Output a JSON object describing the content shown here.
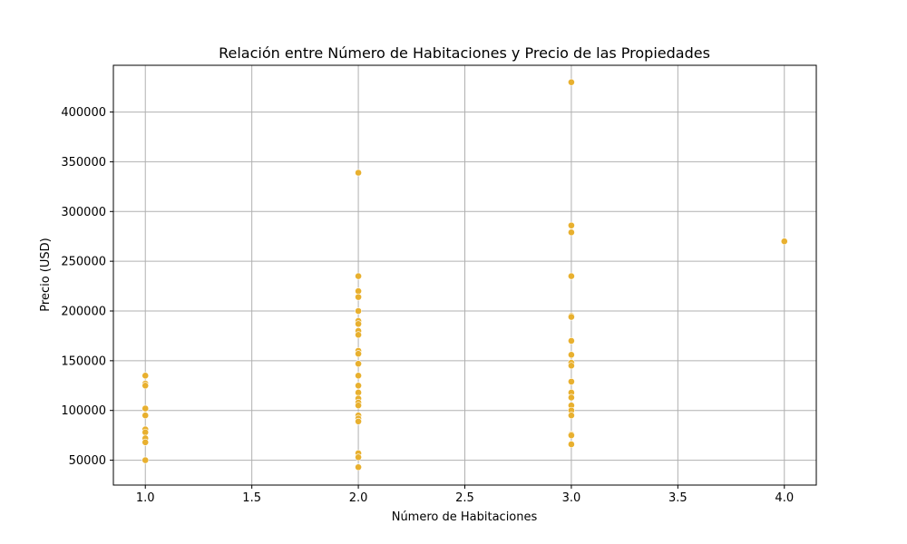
{
  "chart_data": {
    "type": "scatter",
    "title": "Relación entre Número de Habitaciones y Precio de las Propiedades",
    "xlabel": "Número de Habitaciones",
    "ylabel": "Precio (USD)",
    "xlim": [
      0.85,
      4.15
    ],
    "ylim": [
      25000,
      447000
    ],
    "xticks": [
      1.0,
      1.5,
      2.0,
      2.5,
      3.0,
      3.5,
      4.0
    ],
    "xtick_labels": [
      "1.0",
      "1.5",
      "2.0",
      "2.5",
      "3.0",
      "3.5",
      "4.0"
    ],
    "yticks": [
      50000,
      100000,
      150000,
      200000,
      250000,
      300000,
      350000,
      400000
    ],
    "ytick_labels": [
      "50000",
      "100000",
      "150000",
      "200000",
      "250000",
      "300000",
      "350000",
      "400000"
    ],
    "grid": true,
    "marker_color": "#e8b02f",
    "points": [
      {
        "x": 1,
        "y": 135000
      },
      {
        "x": 1,
        "y": 127000
      },
      {
        "x": 1,
        "y": 125000
      },
      {
        "x": 1,
        "y": 102000
      },
      {
        "x": 1,
        "y": 95000
      },
      {
        "x": 1,
        "y": 81000
      },
      {
        "x": 1,
        "y": 78000
      },
      {
        "x": 1,
        "y": 72000
      },
      {
        "x": 1,
        "y": 68000
      },
      {
        "x": 1,
        "y": 50000
      },
      {
        "x": 2,
        "y": 339000
      },
      {
        "x": 2,
        "y": 235000
      },
      {
        "x": 2,
        "y": 220000
      },
      {
        "x": 2,
        "y": 214000
      },
      {
        "x": 2,
        "y": 200000
      },
      {
        "x": 2,
        "y": 190000
      },
      {
        "x": 2,
        "y": 187000
      },
      {
        "x": 2,
        "y": 180000
      },
      {
        "x": 2,
        "y": 176000
      },
      {
        "x": 2,
        "y": 160000
      },
      {
        "x": 2,
        "y": 157000
      },
      {
        "x": 2,
        "y": 147000
      },
      {
        "x": 2,
        "y": 135000
      },
      {
        "x": 2,
        "y": 125000
      },
      {
        "x": 2,
        "y": 118000
      },
      {
        "x": 2,
        "y": 112000
      },
      {
        "x": 2,
        "y": 108000
      },
      {
        "x": 2,
        "y": 105000
      },
      {
        "x": 2,
        "y": 95000
      },
      {
        "x": 2,
        "y": 92000
      },
      {
        "x": 2,
        "y": 89000
      },
      {
        "x": 2,
        "y": 57000
      },
      {
        "x": 2,
        "y": 53000
      },
      {
        "x": 2,
        "y": 43000
      },
      {
        "x": 3,
        "y": 430000
      },
      {
        "x": 3,
        "y": 286000
      },
      {
        "x": 3,
        "y": 279000
      },
      {
        "x": 3,
        "y": 235000
      },
      {
        "x": 3,
        "y": 195000
      },
      {
        "x": 3,
        "y": 194000
      },
      {
        "x": 3,
        "y": 170000
      },
      {
        "x": 3,
        "y": 156000
      },
      {
        "x": 3,
        "y": 148000
      },
      {
        "x": 3,
        "y": 145000
      },
      {
        "x": 3,
        "y": 129000
      },
      {
        "x": 3,
        "y": 118000
      },
      {
        "x": 3,
        "y": 113000
      },
      {
        "x": 3,
        "y": 105000
      },
      {
        "x": 3,
        "y": 100000
      },
      {
        "x": 3,
        "y": 95000
      },
      {
        "x": 3,
        "y": 76000
      },
      {
        "x": 3,
        "y": 75000
      },
      {
        "x": 3,
        "y": 66000
      },
      {
        "x": 4,
        "y": 270000
      }
    ]
  }
}
